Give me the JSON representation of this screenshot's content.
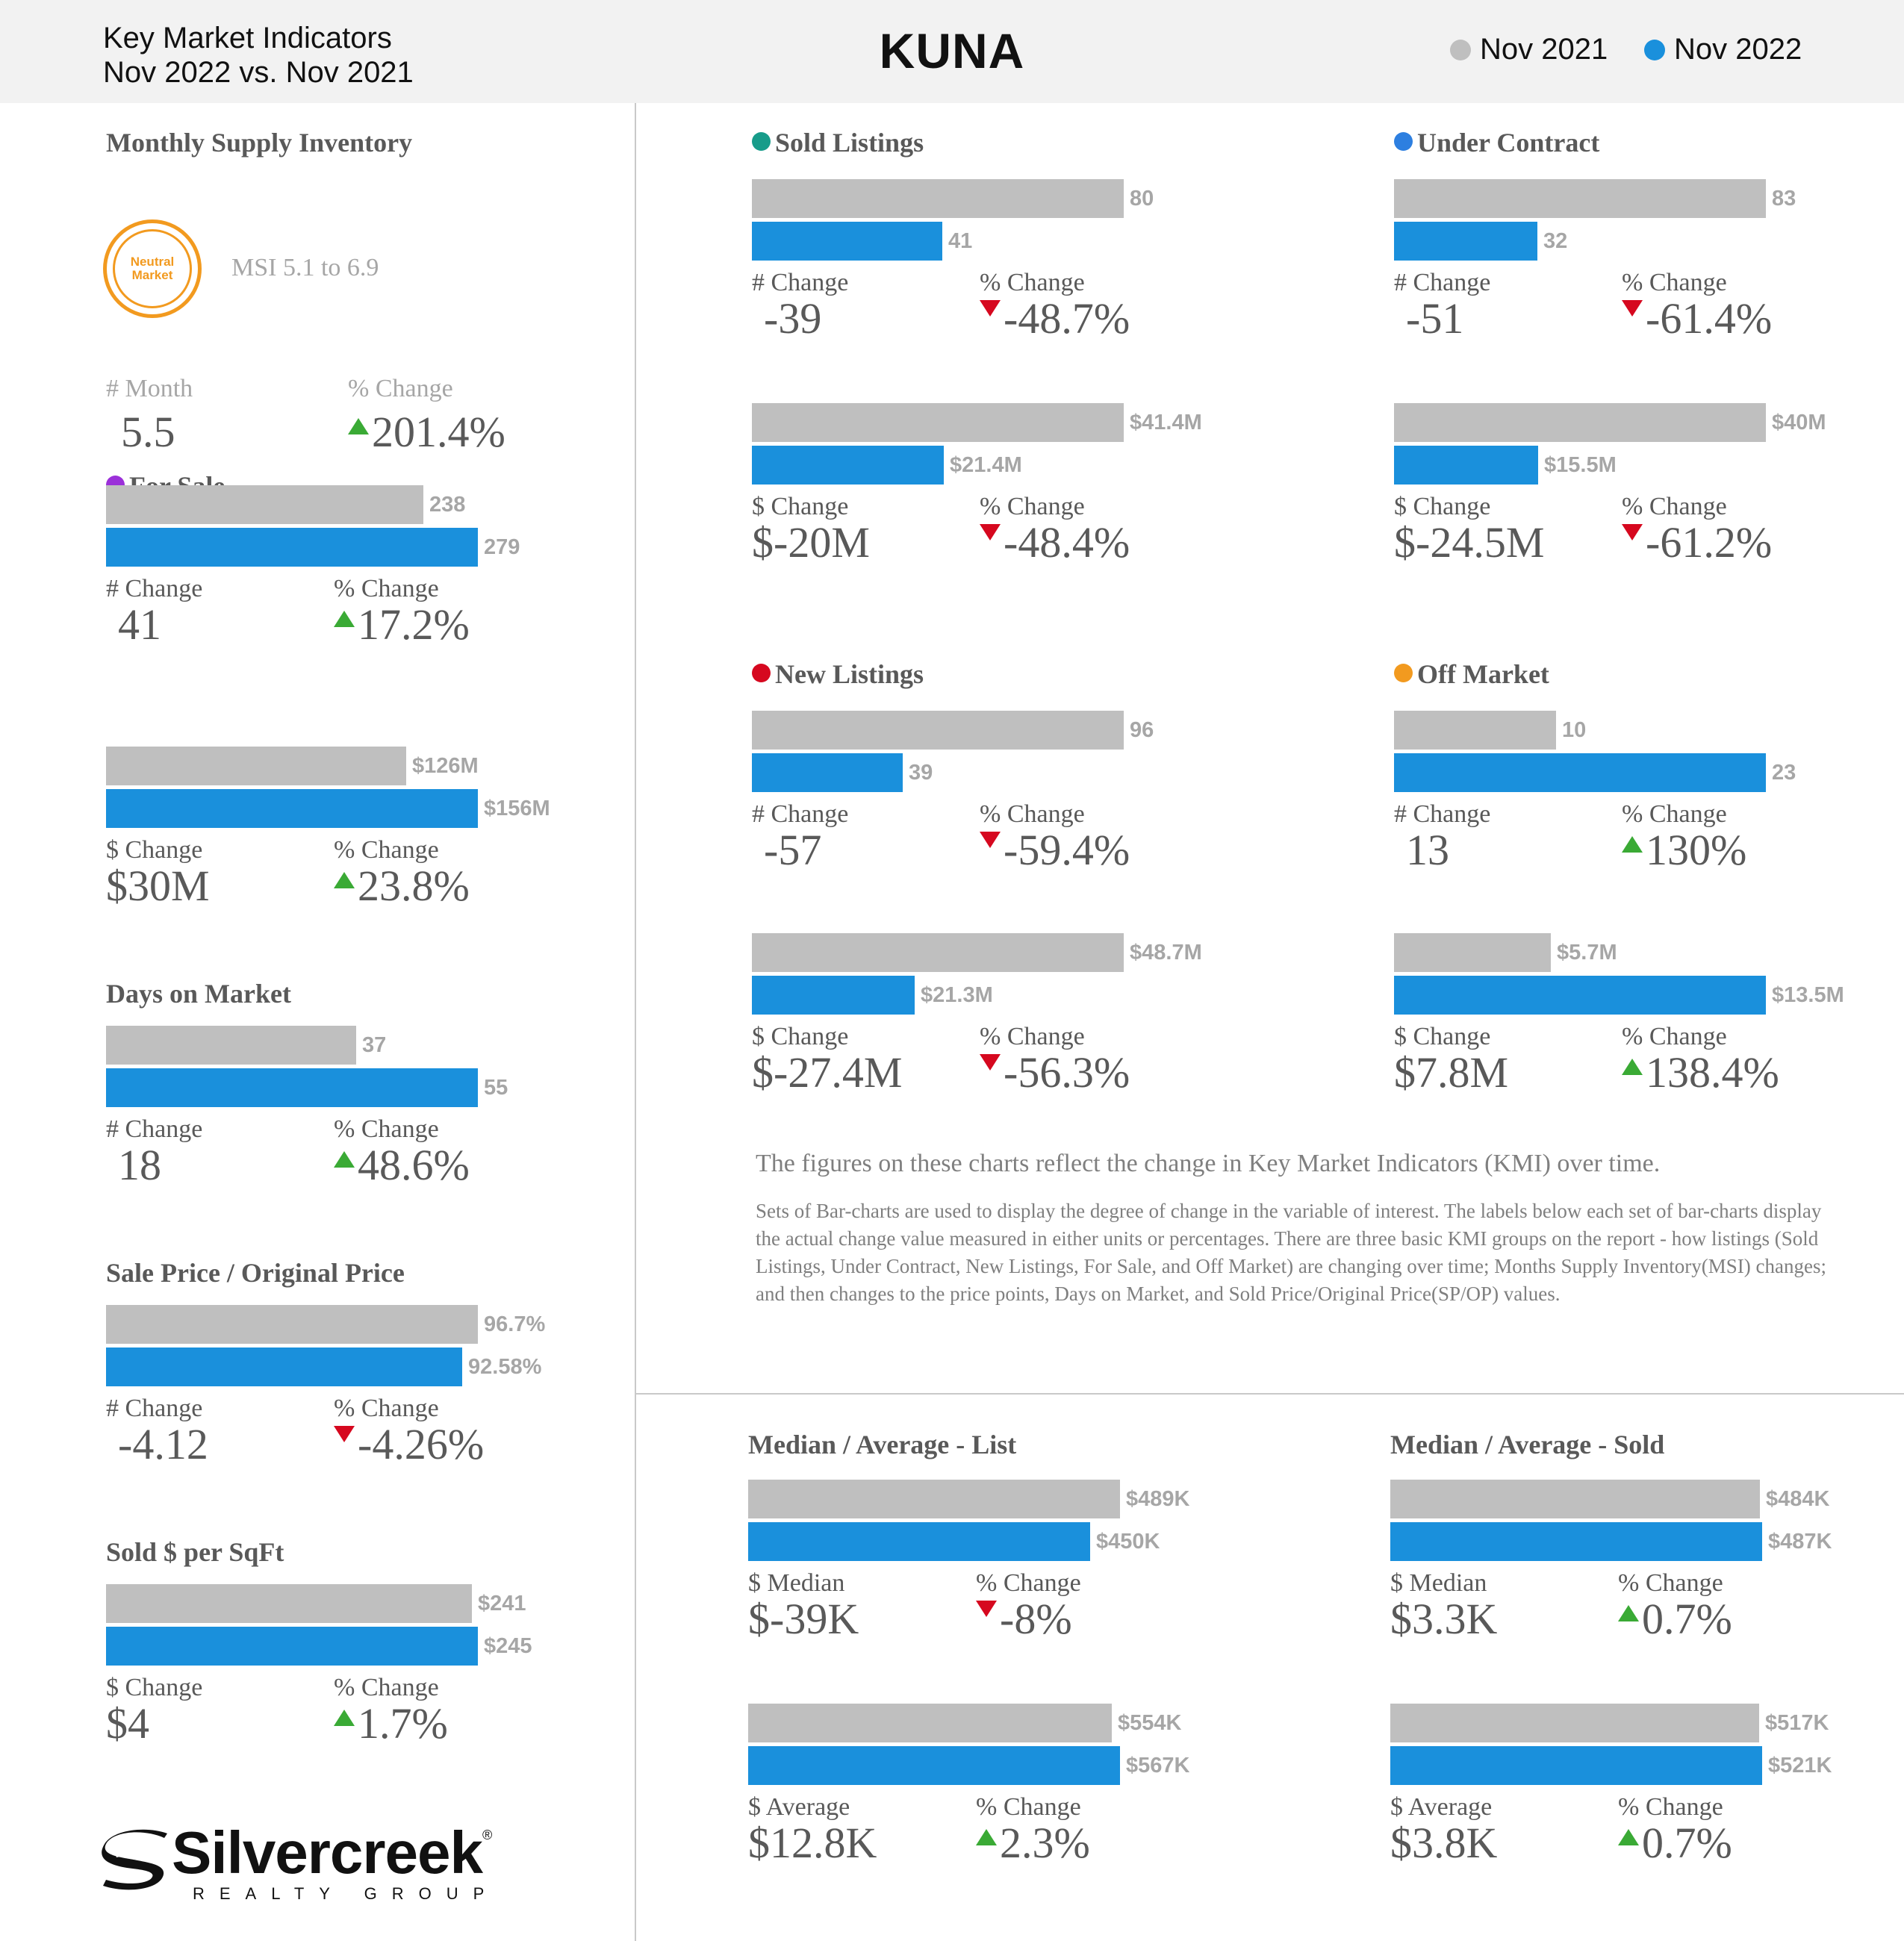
{
  "header": {
    "subtitle_line1": "Key Market Indicators",
    "subtitle_line2": "Nov 2022 vs. Nov 2021",
    "city": "KUNA",
    "legend": [
      {
        "label": "Nov 2021",
        "color": "#bfbfbf"
      },
      {
        "label": "Nov 2022",
        "color": "#1a90dc"
      }
    ]
  },
  "colors": {
    "nov_2021": "#bfbfbf",
    "nov_2022": "#1a90dc",
    "up_arrow": "#3aaa35",
    "down_arrow": "#d6081f",
    "msi_badge": "#f29a1f"
  },
  "msi": {
    "title": "Monthly Supply Inventory",
    "badge_line1": "Neutral",
    "badge_line2": "Market",
    "range_text": "MSI 5.1 to 6.9",
    "stat1_label": "# Month",
    "stat1_value": "5.5",
    "stat2_label": "% Change",
    "stat2_value": "201.4%",
    "stat2_direction": "up"
  },
  "note": {
    "title": "The figures on these charts reflect the change in Key Market Indicators (KMI) over time.",
    "body": "Sets of Bar-charts are used to display the degree of change in the variable of interest. The labels below each set of bar-charts display the actual change value measured in either units or percentages. There are three basic KMI groups on the report - how listings (Sold Listings, Under Contract, New Listings, For Sale, and Off Market) are changing over time; Months Supply Inventory(MSI) changes; and then changes to the price points, Days on Market, and Sold Price/Original Price(SP/OP) values."
  },
  "logo": {
    "name": "Silvercreek",
    "tagline": "REALTY GROUP",
    "registered": "®"
  },
  "chart_data": [
    {
      "id": "for_sale_count",
      "type": "bar",
      "title": "For Sale",
      "dot_color": "#9b30d9",
      "categories": [
        "Nov 2021",
        "Nov 2022"
      ],
      "values": [
        238,
        279
      ],
      "labels": [
        "238",
        "279"
      ],
      "change_label": "# Change",
      "change_value": "41",
      "pct_label": "% Change",
      "pct_value": "17.2%",
      "pct_direction": "up"
    },
    {
      "id": "for_sale_dollar",
      "type": "bar",
      "title": "",
      "categories": [
        "Nov 2021",
        "Nov 2022"
      ],
      "values": [
        126,
        156
      ],
      "labels": [
        "$126M",
        "$156M"
      ],
      "change_label": "$ Change",
      "change_value": "$30M",
      "pct_label": "% Change",
      "pct_value": "23.8%",
      "pct_direction": "up"
    },
    {
      "id": "days_on_market",
      "type": "bar",
      "title": "Days on Market",
      "categories": [
        "Nov 2021",
        "Nov 2022"
      ],
      "values": [
        37,
        55
      ],
      "labels": [
        "37",
        "55"
      ],
      "change_label": "# Change",
      "change_value": "18",
      "pct_label": "% Change",
      "pct_value": "48.6%",
      "pct_direction": "up"
    },
    {
      "id": "sp_op",
      "type": "bar",
      "title": "Sale Price / Original Price",
      "categories": [
        "Nov 2021",
        "Nov 2022"
      ],
      "values": [
        96.7,
        92.58
      ],
      "labels": [
        "96.7%",
        "92.58%"
      ],
      "change_label": "# Change",
      "change_value": "-4.12",
      "pct_label": "% Change",
      "pct_value": "-4.26%",
      "pct_direction": "down"
    },
    {
      "id": "sold_per_sqft",
      "type": "bar",
      "title": "Sold $ per SqFt",
      "categories": [
        "Nov 2021",
        "Nov 2022"
      ],
      "values": [
        241,
        245
      ],
      "labels": [
        "$241",
        "$245"
      ],
      "change_label": "$ Change",
      "change_value": "$4",
      "pct_label": "% Change",
      "pct_value": "1.7%",
      "pct_direction": "up"
    },
    {
      "id": "sold_count",
      "type": "bar",
      "title": "Sold Listings",
      "dot_color": "#179c8a",
      "categories": [
        "Nov 2021",
        "Nov 2022"
      ],
      "values": [
        80,
        41
      ],
      "labels": [
        "80",
        "41"
      ],
      "change_label": "# Change",
      "change_value": "-39",
      "pct_label": "% Change",
      "pct_value": "-48.7%",
      "pct_direction": "down"
    },
    {
      "id": "sold_dollar",
      "type": "bar",
      "title": "",
      "categories": [
        "Nov 2021",
        "Nov 2022"
      ],
      "values": [
        41.4,
        21.4
      ],
      "labels": [
        "$41.4M",
        "$21.4M"
      ],
      "change_label": "$ Change",
      "change_value": "$-20M",
      "pct_label": "% Change",
      "pct_value": "-48.4%",
      "pct_direction": "down"
    },
    {
      "id": "under_contract_count",
      "type": "bar",
      "title": "Under Contract",
      "dot_color": "#2d7fe0",
      "categories": [
        "Nov 2021",
        "Nov 2022"
      ],
      "values": [
        83,
        32
      ],
      "labels": [
        "83",
        "32"
      ],
      "change_label": "# Change",
      "change_value": "-51",
      "pct_label": "% Change",
      "pct_value": "-61.4%",
      "pct_direction": "down"
    },
    {
      "id": "under_contract_dollar",
      "type": "bar",
      "title": "",
      "categories": [
        "Nov 2021",
        "Nov 2022"
      ],
      "values": [
        40,
        15.5
      ],
      "labels": [
        "$40M",
        "$15.5M"
      ],
      "change_label": "$ Change",
      "change_value": "$-24.5M",
      "pct_label": "% Change",
      "pct_value": "-61.2%",
      "pct_direction": "down"
    },
    {
      "id": "new_listings_count",
      "type": "bar",
      "title": "New Listings",
      "dot_color": "#d6081f",
      "categories": [
        "Nov 2021",
        "Nov 2022"
      ],
      "values": [
        96,
        39
      ],
      "labels": [
        "96",
        "39"
      ],
      "change_label": "# Change",
      "change_value": "-57",
      "pct_label": "% Change",
      "pct_value": "-59.4%",
      "pct_direction": "down"
    },
    {
      "id": "new_listings_dollar",
      "type": "bar",
      "title": "",
      "categories": [
        "Nov 2021",
        "Nov 2022"
      ],
      "values": [
        48.7,
        21.3
      ],
      "labels": [
        "$48.7M",
        "$21.3M"
      ],
      "change_label": "$ Change",
      "change_value": "$-27.4M",
      "pct_label": "% Change",
      "pct_value": "-56.3%",
      "pct_direction": "down"
    },
    {
      "id": "off_market_count",
      "type": "bar",
      "title": "Off Market",
      "dot_color": "#f29a1f",
      "categories": [
        "Nov 2021",
        "Nov 2022"
      ],
      "values": [
        10,
        23
      ],
      "labels": [
        "10",
        "23"
      ],
      "change_label": "# Change",
      "change_value": "13",
      "pct_label": "% Change",
      "pct_value": "130%",
      "pct_direction": "up"
    },
    {
      "id": "off_market_dollar",
      "type": "bar",
      "title": "",
      "categories": [
        "Nov 2021",
        "Nov 2022"
      ],
      "values": [
        5.7,
        13.5
      ],
      "labels": [
        "$5.7M",
        "$13.5M"
      ],
      "change_label": "$ Change",
      "change_value": "$7.8M",
      "pct_label": "% Change",
      "pct_value": "138.4%",
      "pct_direction": "up"
    },
    {
      "id": "list_median",
      "type": "bar",
      "title": "Median / Average - List",
      "categories": [
        "Nov 2021",
        "Nov 2022"
      ],
      "values": [
        489,
        450
      ],
      "labels": [
        "$489K",
        "$450K"
      ],
      "change_label": "$ Median",
      "change_value": "$-39K",
      "pct_label": "% Change",
      "pct_value": "-8%",
      "pct_direction": "down"
    },
    {
      "id": "list_average",
      "type": "bar",
      "title": "",
      "categories": [
        "Nov 2021",
        "Nov 2022"
      ],
      "values": [
        554,
        567
      ],
      "labels": [
        "$554K",
        "$567K"
      ],
      "change_label": "$ Average",
      "change_value": "$12.8K",
      "pct_label": "% Change",
      "pct_value": "2.3%",
      "pct_direction": "up"
    },
    {
      "id": "sold_median",
      "type": "bar",
      "title": "Median / Average - Sold",
      "categories": [
        "Nov 2021",
        "Nov 2022"
      ],
      "values": [
        484,
        487
      ],
      "labels": [
        "$484K",
        "$487K"
      ],
      "change_label": "$ Median",
      "change_value": "$3.3K",
      "pct_label": "% Change",
      "pct_value": "0.7%",
      "pct_direction": "up"
    },
    {
      "id": "sold_average",
      "type": "bar",
      "title": "",
      "categories": [
        "Nov 2021",
        "Nov 2022"
      ],
      "values": [
        517,
        521
      ],
      "labels": [
        "$517K",
        "$521K"
      ],
      "change_label": "$ Average",
      "change_value": "$3.8K",
      "pct_label": "% Change",
      "pct_value": "0.7%",
      "pct_direction": "up"
    }
  ]
}
